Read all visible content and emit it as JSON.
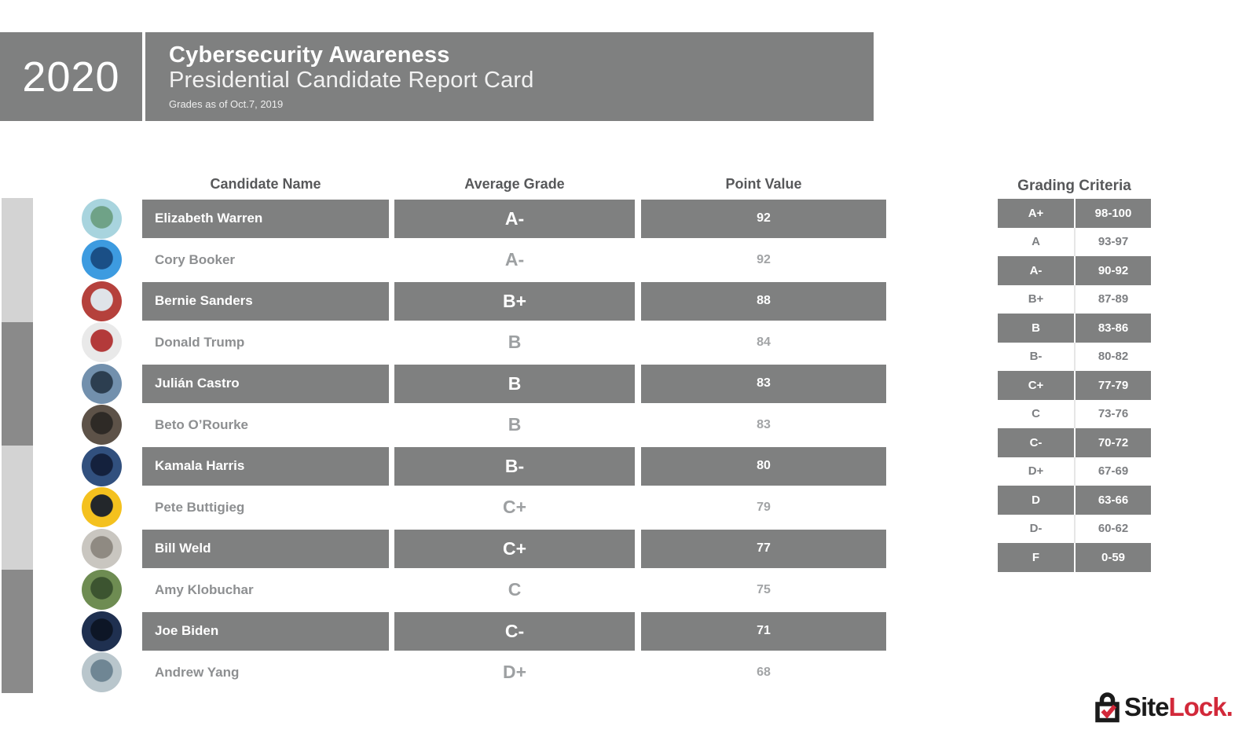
{
  "header": {
    "year": "2020",
    "title": "Cybersecurity Awareness",
    "subtitle": "Presidential Candidate Report Card",
    "note": "Grades as of Oct.7, 2019",
    "banner_color": "#7f8080"
  },
  "table": {
    "columns": [
      "Candidate Name",
      "Average Grade",
      "Point Value"
    ],
    "highlight_color": "#7f8080",
    "rows": [
      {
        "name": "Elizabeth Warren",
        "grade": "A-",
        "points": "92",
        "highlighted": true,
        "avatar_colors": [
          "#a8d4de",
          "#6fa287"
        ]
      },
      {
        "name": "Cory Booker",
        "grade": "A-",
        "points": "92",
        "highlighted": false,
        "avatar_colors": [
          "#3d9be0",
          "#1a4f86"
        ]
      },
      {
        "name": "Bernie Sanders",
        "grade": "B+",
        "points": "88",
        "highlighted": true,
        "avatar_colors": [
          "#b5413c",
          "#dfe3e8"
        ]
      },
      {
        "name": "Donald Trump",
        "grade": "B",
        "points": "84",
        "highlighted": false,
        "avatar_colors": [
          "#e9e9e9",
          "#b33a3a"
        ]
      },
      {
        "name": "Julián Castro",
        "grade": "B",
        "points": "83",
        "highlighted": true,
        "avatar_colors": [
          "#7290ad",
          "#2c3e50"
        ]
      },
      {
        "name": "Beto O’Rourke",
        "grade": "B",
        "points": "83",
        "highlighted": false,
        "avatar_colors": [
          "#5d5248",
          "#2e2a26"
        ]
      },
      {
        "name": "Kamala Harris",
        "grade": "B-",
        "points": "80",
        "highlighted": true,
        "avatar_colors": [
          "#31507e",
          "#14213d"
        ]
      },
      {
        "name": "Pete Buttigieg",
        "grade": "C+",
        "points": "79",
        "highlighted": false,
        "avatar_colors": [
          "#f4c11e",
          "#23272b"
        ]
      },
      {
        "name": "Bill Weld",
        "grade": "C+",
        "points": "77",
        "highlighted": true,
        "avatar_colors": [
          "#c9c6c0",
          "#8f8a82"
        ]
      },
      {
        "name": "Amy Klobuchar",
        "grade": "C",
        "points": "75",
        "highlighted": false,
        "avatar_colors": [
          "#6e8c52",
          "#3c5430"
        ]
      },
      {
        "name": "Joe Biden",
        "grade": "C-",
        "points": "71",
        "highlighted": true,
        "avatar_colors": [
          "#1f3050",
          "#0d1626"
        ]
      },
      {
        "name": "Andrew Yang",
        "grade": "D+",
        "points": "68",
        "highlighted": false,
        "avatar_colors": [
          "#b9c6cc",
          "#6f8694"
        ]
      }
    ]
  },
  "grading_criteria": {
    "title": "Grading Criteria",
    "rows": [
      {
        "grade": "A+",
        "range": "98-100",
        "highlighted": true
      },
      {
        "grade": "A",
        "range": "93-97",
        "highlighted": false
      },
      {
        "grade": "A-",
        "range": "90-92",
        "highlighted": true
      },
      {
        "grade": "B+",
        "range": "87-89",
        "highlighted": false
      },
      {
        "grade": "B",
        "range": "83-86",
        "highlighted": true
      },
      {
        "grade": "B-",
        "range": "80-82",
        "highlighted": false
      },
      {
        "grade": "C+",
        "range": "77-79",
        "highlighted": true
      },
      {
        "grade": "C",
        "range": "73-76",
        "highlighted": false
      },
      {
        "grade": "C-",
        "range": "70-72",
        "highlighted": true
      },
      {
        "grade": "D+",
        "range": "67-69",
        "highlighted": false
      },
      {
        "grade": "D",
        "range": "63-66",
        "highlighted": true
      },
      {
        "grade": "D-",
        "range": "60-62",
        "highlighted": false
      },
      {
        "grade": "F",
        "range": "0-59",
        "highlighted": true
      }
    ]
  },
  "side_strip": {
    "colors": [
      "#d3d3d3",
      "#8a8a8a",
      "#d3d3d3",
      "#8a8a8a"
    ]
  },
  "logo": {
    "text_black": "Site",
    "text_red": "Lock",
    "period": ".",
    "red": "#d2293a",
    "black": "#1b1b1b"
  },
  "chart_data": {
    "type": "table",
    "title": "2020 Cybersecurity Awareness Presidential Candidate Report Card",
    "subtitle": "Grades as of Oct.7, 2019",
    "columns": [
      "Candidate Name",
      "Average Grade",
      "Point Value"
    ],
    "rows": [
      [
        "Elizabeth Warren",
        "A-",
        92
      ],
      [
        "Cory Booker",
        "A-",
        92
      ],
      [
        "Bernie Sanders",
        "B+",
        88
      ],
      [
        "Donald Trump",
        "B",
        84
      ],
      [
        "Julián Castro",
        "B",
        83
      ],
      [
        "Beto O’Rourke",
        "B",
        83
      ],
      [
        "Kamala Harris",
        "B-",
        80
      ],
      [
        "Pete Buttigieg",
        "C+",
        79
      ],
      [
        "Bill Weld",
        "C+",
        77
      ],
      [
        "Amy Klobuchar",
        "C",
        75
      ],
      [
        "Joe Biden",
        "C-",
        71
      ],
      [
        "Andrew Yang",
        "D+",
        68
      ]
    ],
    "legend_title": "Grading Criteria",
    "legend": [
      [
        "A+",
        "98-100"
      ],
      [
        "A",
        "93-97"
      ],
      [
        "A-",
        "90-92"
      ],
      [
        "B+",
        "87-89"
      ],
      [
        "B",
        "83-86"
      ],
      [
        "B-",
        "80-82"
      ],
      [
        "C+",
        "77-79"
      ],
      [
        "C",
        "73-76"
      ],
      [
        "C-",
        "70-72"
      ],
      [
        "D+",
        "67-69"
      ],
      [
        "D",
        "63-66"
      ],
      [
        "D-",
        "60-62"
      ],
      [
        "F",
        "0-59"
      ]
    ]
  }
}
